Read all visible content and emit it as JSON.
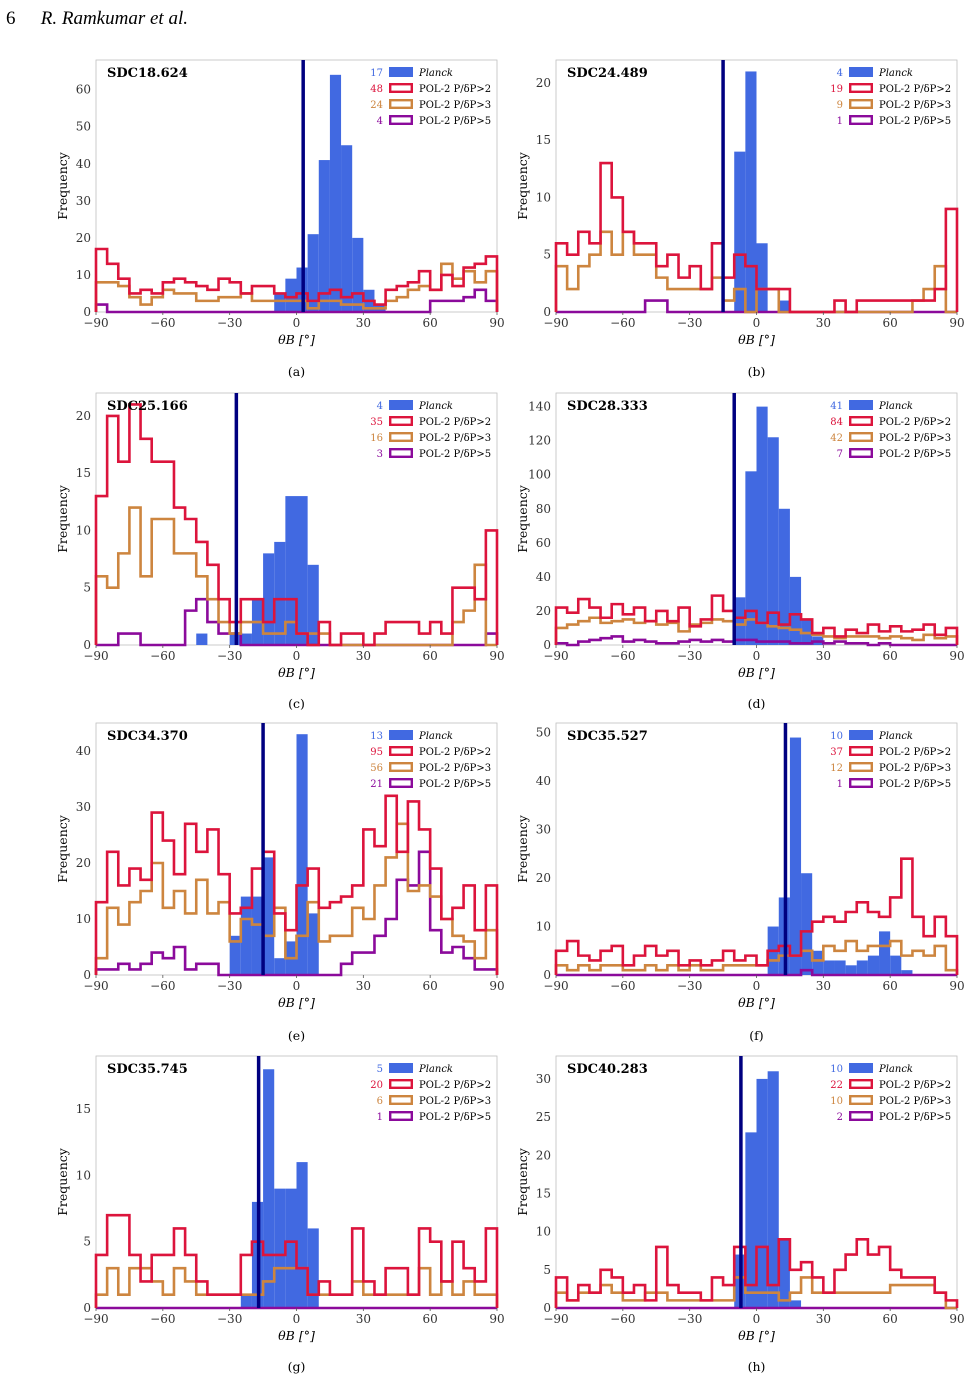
{
  "header": {
    "page_number": "6",
    "authors": "R. Ramkumar et al."
  },
  "legend_labels": {
    "planck": "Planck",
    "p2": "POL-2 P/δP>2",
    "p3": "POL-2 P/δP>3",
    "p5": "POL-2 P/δP>5"
  },
  "colors": {
    "planck": "#4169e1",
    "p2": "#dc143c",
    "p3": "#cd853f",
    "p5": "#8b0a9b",
    "line": "#000080"
  },
  "chart_data": [
    {
      "type": "histogram",
      "panel_label": "(a)",
      "title": "SDC18.624",
      "xlabel": "θB [°]",
      "ylabel": "Frequency",
      "xlim": [
        -90,
        90
      ],
      "ylim": [
        0,
        68
      ],
      "yticks": [
        0,
        10,
        20,
        30,
        40,
        50,
        60
      ],
      "xticks": [
        -90,
        -60,
        -30,
        0,
        30,
        60,
        90
      ],
      "bin_width": 5,
      "vertical_line": 3,
      "counts": {
        "planck": "17",
        "p2": "48",
        "p3": "24",
        "p5": "4"
      },
      "planck": [
        0,
        0,
        0,
        0,
        0,
        0,
        0,
        0,
        0,
        0,
        0,
        0,
        0,
        0,
        0,
        0,
        5,
        9,
        12,
        21,
        41,
        64,
        45,
        20,
        6,
        2,
        0,
        0,
        0,
        0,
        0,
        0,
        0,
        0,
        0,
        0
      ],
      "p2": [
        17,
        13,
        9,
        5,
        6,
        5,
        8,
        9,
        8,
        7,
        6,
        9,
        8,
        5,
        7,
        7,
        5,
        4,
        5,
        3,
        5,
        6,
        4,
        5,
        3,
        2,
        6,
        7,
        8,
        11,
        6,
        10,
        7,
        12,
        13,
        15
      ],
      "p3": [
        8,
        8,
        7,
        4,
        2,
        4,
        6,
        5,
        5,
        3,
        3,
        4,
        4,
        5,
        3,
        3,
        3,
        3,
        3,
        1,
        3,
        3,
        2,
        2,
        1,
        1,
        3,
        4,
        6,
        7,
        6,
        13,
        9,
        11,
        8,
        11
      ],
      "p5": [
        2,
        0,
        0,
        0,
        0,
        0,
        0,
        0,
        0,
        0,
        0,
        0,
        0,
        0,
        0,
        0,
        0,
        0,
        0,
        0,
        0,
        0,
        0,
        0,
        0,
        0,
        0,
        0,
        0,
        0,
        3,
        3,
        3,
        4,
        6,
        3
      ]
    },
    {
      "type": "histogram",
      "panel_label": "(b)",
      "title": "SDC24.489",
      "xlabel": "θB [°]",
      "ylabel": "Frequency",
      "xlim": [
        -90,
        90
      ],
      "ylim": [
        0,
        22
      ],
      "yticks": [
        0,
        5,
        10,
        15,
        20
      ],
      "xticks": [
        -90,
        -60,
        -30,
        0,
        30,
        60,
        90
      ],
      "bin_width": 5,
      "vertical_line": -15,
      "counts": {
        "planck": "4",
        "p2": "19",
        "p3": "9",
        "p5": "1"
      },
      "planck": [
        0,
        0,
        0,
        0,
        0,
        0,
        0,
        0,
        0,
        0,
        0,
        0,
        0,
        0,
        0,
        0,
        14,
        21,
        6,
        0,
        1,
        0,
        0,
        0,
        0,
        0,
        0,
        0,
        0,
        0,
        0,
        0,
        0,
        0,
        0,
        0
      ],
      "p2": [
        6,
        5,
        7,
        6,
        13,
        10,
        7,
        6,
        6,
        4,
        5,
        3,
        4,
        2,
        6,
        3,
        5,
        4,
        2,
        2,
        2,
        0,
        0,
        0,
        0,
        1,
        0,
        1,
        1,
        1,
        1,
        1,
        1,
        1,
        2,
        9
      ],
      "p3": [
        4,
        2,
        4,
        5,
        7,
        5,
        7,
        5,
        5,
        3,
        2,
        2,
        2,
        2,
        3,
        1,
        2,
        0,
        2,
        2,
        0,
        0,
        0,
        0,
        0,
        0,
        0,
        0,
        0,
        0,
        0,
        0,
        1,
        2,
        4,
        0
      ],
      "p5": [
        0,
        0,
        0,
        0,
        0,
        0,
        0,
        0,
        1,
        1,
        0,
        0,
        0,
        0,
        0,
        0,
        0,
        0,
        0,
        0,
        0,
        0,
        0,
        0,
        0,
        0,
        0,
        0,
        0,
        0,
        0,
        0,
        0,
        0,
        0,
        0
      ]
    },
    {
      "type": "histogram",
      "panel_label": "(c)",
      "title": "SDC25.166",
      "xlabel": "θB [°]",
      "ylabel": "Frequency",
      "xlim": [
        -90,
        90
      ],
      "ylim": [
        0,
        22
      ],
      "yticks": [
        0,
        5,
        10,
        15,
        20
      ],
      "xticks": [
        -90,
        -60,
        -30,
        0,
        30,
        60,
        90
      ],
      "bin_width": 5,
      "vertical_line": -27,
      "counts": {
        "planck": "4",
        "p2": "35",
        "p3": "16",
        "p5": "3"
      },
      "planck": [
        0,
        0,
        0,
        0,
        0,
        0,
        0,
        0,
        0,
        1,
        0,
        0,
        1,
        1,
        4,
        8,
        9,
        13,
        13,
        7,
        0,
        0,
        0,
        0,
        0,
        0,
        0,
        0,
        0,
        0,
        0,
        0,
        0,
        0,
        0,
        0
      ],
      "p2": [
        13,
        20,
        16,
        21,
        18,
        16,
        16,
        12,
        11,
        9,
        7,
        4,
        2,
        4,
        4,
        2,
        4,
        4,
        1,
        0,
        2,
        0,
        1,
        1,
        0,
        1,
        2,
        2,
        2,
        1,
        2,
        1,
        5,
        5,
        4,
        10
      ],
      "p3": [
        6,
        5,
        8,
        12,
        6,
        11,
        11,
        8,
        8,
        6,
        4,
        2,
        1,
        2,
        2,
        1,
        1,
        2,
        1,
        1,
        1,
        0,
        0,
        0,
        0,
        0,
        0,
        0,
        0,
        0,
        0,
        0,
        2,
        3,
        7,
        0
      ],
      "p5": [
        0,
        0,
        1,
        1,
        0,
        0,
        0,
        0,
        3,
        4,
        2,
        1,
        1,
        0,
        0,
        0,
        0,
        0,
        0,
        0,
        0,
        0,
        0,
        0,
        0,
        0,
        0,
        0,
        0,
        0,
        0,
        0,
        0,
        0,
        0,
        1
      ]
    },
    {
      "type": "histogram",
      "panel_label": "(d)",
      "title": "SDC28.333",
      "xlabel": "θB [°]",
      "ylabel": "Frequency",
      "xlim": [
        -90,
        90
      ],
      "ylim": [
        0,
        148
      ],
      "yticks": [
        0,
        20,
        40,
        60,
        80,
        100,
        120,
        140
      ],
      "xticks": [
        -90,
        -60,
        -30,
        0,
        30,
        60,
        90
      ],
      "bin_width": 5,
      "vertical_line": -10,
      "counts": {
        "planck": "41",
        "p2": "84",
        "p3": "42",
        "p5": "7"
      },
      "planck": [
        0,
        0,
        0,
        0,
        0,
        0,
        0,
        0,
        0,
        0,
        0,
        0,
        0,
        0,
        0,
        0,
        28,
        102,
        140,
        122,
        80,
        40,
        15,
        5,
        0,
        0,
        0,
        0,
        0,
        0,
        0,
        0,
        0,
        0,
        0,
        0
      ],
      "p2": [
        22,
        19,
        27,
        22,
        16,
        24,
        18,
        22,
        14,
        20,
        14,
        22,
        11,
        15,
        29,
        20,
        16,
        20,
        13,
        19,
        12,
        18,
        15,
        7,
        10,
        5,
        9,
        7,
        12,
        8,
        11,
        8,
        9,
        12,
        6,
        10
      ],
      "p3": [
        10,
        12,
        14,
        16,
        13,
        14,
        15,
        13,
        14,
        12,
        13,
        8,
        12,
        13,
        15,
        14,
        12,
        15,
        13,
        11,
        10,
        9,
        7,
        6,
        5,
        4,
        5,
        5,
        5,
        4,
        5,
        4,
        3,
        6,
        4,
        5
      ],
      "p5": [
        1,
        0,
        2,
        3,
        4,
        5,
        2,
        3,
        2,
        1,
        1,
        2,
        3,
        2,
        3,
        2,
        3,
        3,
        2,
        2,
        2,
        1,
        1,
        2,
        1,
        2,
        1,
        1,
        0,
        1,
        0,
        0,
        0,
        0,
        0,
        0
      ]
    },
    {
      "type": "histogram",
      "panel_label": "(e)",
      "title": "SDC34.370",
      "xlabel": "θB [°]",
      "ylabel": "Frequency",
      "xlim": [
        -90,
        90
      ],
      "ylim": [
        0,
        45
      ],
      "yticks": [
        0,
        10,
        20,
        30,
        40
      ],
      "xticks": [
        -90,
        -60,
        -30,
        0,
        30,
        60,
        90
      ],
      "bin_width": 5,
      "vertical_line": -15,
      "counts": {
        "planck": "13",
        "p2": "95",
        "p3": "56",
        "p5": "21"
      },
      "planck": [
        0,
        0,
        0,
        0,
        0,
        0,
        0,
        0,
        0,
        0,
        0,
        0,
        7,
        14,
        14,
        21,
        3,
        6,
        43,
        11,
        0,
        0,
        0,
        0,
        0,
        0,
        0,
        0,
        0,
        0,
        0,
        0,
        0,
        0,
        0,
        0
      ],
      "p2": [
        13,
        22,
        16,
        19,
        17,
        29,
        24,
        18,
        27,
        22,
        26,
        18,
        11,
        12,
        19,
        22,
        11,
        8,
        16,
        19,
        12,
        13,
        14,
        16,
        26,
        23,
        32,
        22,
        31,
        26,
        19,
        10,
        12,
        16,
        8,
        16
      ],
      "p3": [
        3,
        12,
        9,
        13,
        15,
        20,
        12,
        15,
        11,
        17,
        11,
        13,
        6,
        10,
        9,
        7,
        12,
        3,
        7,
        13,
        6,
        7,
        7,
        12,
        10,
        16,
        21,
        27,
        15,
        16,
        14,
        10,
        7,
        6,
        3,
        8
      ],
      "p5": [
        1,
        1,
        2,
        1,
        2,
        4,
        3,
        5,
        1,
        2,
        2,
        0,
        0,
        0,
        0,
        0,
        0,
        0,
        0,
        0,
        0,
        0,
        2,
        4,
        4,
        7,
        10,
        17,
        16,
        22,
        8,
        4,
        5,
        3,
        1,
        1
      ]
    },
    {
      "type": "histogram",
      "panel_label": "(f)",
      "title": "SDC35.527",
      "xlabel": "θB [°]",
      "ylabel": "Frequency",
      "xlim": [
        -90,
        90
      ],
      "ylim": [
        0,
        52
      ],
      "yticks": [
        0,
        10,
        20,
        30,
        40,
        50
      ],
      "xticks": [
        -90,
        -60,
        -30,
        0,
        30,
        60,
        90
      ],
      "bin_width": 5,
      "vertical_line": 13,
      "counts": {
        "planck": "10",
        "p2": "37",
        "p3": "12",
        "p5": "1"
      },
      "planck": [
        0,
        0,
        0,
        0,
        0,
        0,
        0,
        0,
        0,
        0,
        0,
        0,
        0,
        0,
        0,
        0,
        0,
        0,
        0,
        10,
        16,
        49,
        21,
        5,
        3,
        3,
        2,
        3,
        4,
        9,
        4,
        1,
        0,
        0,
        0,
        0
      ],
      "p2": [
        5,
        7,
        4,
        3,
        5,
        6,
        2,
        4,
        6,
        4,
        5,
        2,
        3,
        2,
        3,
        5,
        3,
        4,
        2,
        5,
        6,
        4,
        9,
        11,
        12,
        11,
        13,
        15,
        13,
        12,
        16,
        24,
        12,
        8,
        12,
        8
      ],
      "p3": [
        2,
        1,
        2,
        1,
        2,
        2,
        1,
        1,
        2,
        1,
        2,
        1,
        2,
        1,
        1,
        2,
        2,
        2,
        2,
        3,
        4,
        4,
        5,
        3,
        6,
        5,
        7,
        5,
        6,
        6,
        7,
        4,
        5,
        4,
        6,
        1
      ],
      "p5": [
        0,
        0,
        0,
        0,
        0,
        0,
        0,
        0,
        0,
        0,
        0,
        0,
        0,
        0,
        0,
        0,
        0,
        0,
        0,
        0,
        0,
        0,
        1,
        0,
        0,
        0,
        0,
        0,
        0,
        0,
        0,
        0,
        0,
        0,
        0,
        0
      ]
    },
    {
      "type": "histogram",
      "panel_label": "(g)",
      "title": "SDC35.745",
      "xlabel": "θB [°]",
      "ylabel": "Frequency",
      "xlim": [
        -90,
        90
      ],
      "ylim": [
        0,
        19
      ],
      "yticks": [
        0,
        5,
        10,
        15
      ],
      "xticks": [
        -90,
        -60,
        -30,
        0,
        30,
        60,
        90
      ],
      "bin_width": 5,
      "vertical_line": -17,
      "counts": {
        "planck": "5",
        "p2": "20",
        "p3": "6",
        "p5": "1"
      },
      "planck": [
        0,
        0,
        0,
        0,
        0,
        0,
        0,
        0,
        0,
        0,
        0,
        0,
        0,
        1,
        8,
        18,
        9,
        9,
        11,
        6,
        0,
        0,
        0,
        0,
        0,
        0,
        0,
        0,
        0,
        0,
        0,
        0,
        0,
        0,
        0,
        0
      ],
      "p2": [
        4,
        7,
        7,
        4,
        2,
        4,
        4,
        6,
        4,
        2,
        1,
        1,
        1,
        4,
        5,
        4,
        4,
        5,
        3,
        1,
        2,
        1,
        1,
        6,
        2,
        1,
        3,
        3,
        1,
        6,
        5,
        2,
        5,
        3,
        2,
        6
      ],
      "p3": [
        1,
        3,
        1,
        3,
        3,
        2,
        1,
        3,
        2,
        1,
        1,
        1,
        1,
        1,
        1,
        2,
        3,
        3,
        3,
        1,
        1,
        1,
        1,
        2,
        1,
        1,
        1,
        1,
        1,
        3,
        1,
        2,
        1,
        2,
        1,
        1
      ],
      "p5": [
        0,
        0,
        0,
        0,
        0,
        0,
        0,
        0,
        0,
        0,
        0,
        0,
        0,
        0,
        0,
        0,
        0,
        0,
        0,
        0,
        0,
        0,
        0,
        0,
        0,
        0,
        0,
        0,
        0,
        0,
        0,
        0,
        0,
        0,
        0,
        0
      ]
    },
    {
      "type": "histogram",
      "panel_label": "(h)",
      "title": "SDC40.283",
      "xlabel": "θB [°]",
      "ylabel": "Frequency",
      "xlim": [
        -90,
        90
      ],
      "ylim": [
        0,
        33
      ],
      "yticks": [
        0,
        5,
        10,
        15,
        20,
        25,
        30
      ],
      "xticks": [
        -90,
        -60,
        -30,
        0,
        30,
        60,
        90
      ],
      "bin_width": 5,
      "vertical_line": -7,
      "counts": {
        "planck": "10",
        "p2": "22",
        "p3": "10",
        "p5": "2"
      },
      "planck": [
        0,
        0,
        0,
        0,
        0,
        0,
        0,
        0,
        0,
        0,
        0,
        0,
        0,
        0,
        0,
        0,
        7,
        23,
        30,
        31,
        9,
        1,
        0,
        0,
        0,
        0,
        0,
        0,
        0,
        0,
        0,
        0,
        0,
        0,
        0,
        0
      ],
      "p2": [
        4,
        1,
        3,
        2,
        5,
        4,
        2,
        3,
        1,
        8,
        3,
        2,
        2,
        1,
        4,
        3,
        8,
        3,
        8,
        3,
        9,
        5,
        6,
        4,
        2,
        5,
        7,
        9,
        7,
        8,
        5,
        4,
        4,
        4,
        2,
        1
      ],
      "p3": [
        2,
        1,
        2,
        2,
        3,
        2,
        1,
        1,
        2,
        2,
        1,
        1,
        1,
        1,
        1,
        1,
        4,
        2,
        2,
        2,
        1,
        2,
        4,
        2,
        2,
        2,
        2,
        2,
        2,
        2,
        3,
        3,
        3,
        3,
        2,
        0
      ],
      "p5": [
        0,
        0,
        0,
        0,
        0,
        0,
        0,
        0,
        0,
        0,
        0,
        0,
        0,
        0,
        0,
        0,
        0,
        0,
        0,
        0,
        0,
        0,
        0,
        0,
        0,
        0,
        0,
        0,
        0,
        0,
        0,
        0,
        0,
        0,
        0,
        0
      ]
    }
  ]
}
